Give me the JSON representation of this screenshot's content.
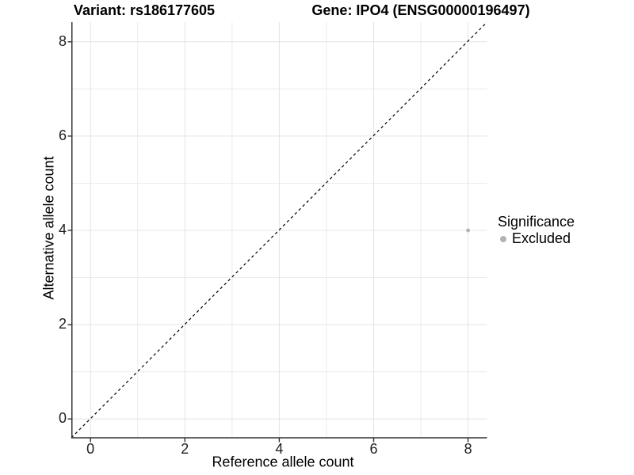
{
  "figure": {
    "title_left": "Variant: rs186177605",
    "title_right": "Gene: IPO4 (ENSG00000196497)"
  },
  "chart_data": {
    "type": "scatter",
    "title": "Variant: rs186177605 | Gene: IPO4 (ENSG00000196497)",
    "xlabel": "Reference allele count",
    "ylabel": "Alternative allele count",
    "x_ticks": [
      0,
      2,
      4,
      6,
      8
    ],
    "y_ticks": [
      0,
      2,
      4,
      6,
      8
    ],
    "xlim": [
      -0.4,
      8.4
    ],
    "ylim": [
      -0.4,
      8.4
    ],
    "grid": "major+minor",
    "series": [
      {
        "name": "Excluded",
        "color": "#b2b2b2",
        "points": [
          {
            "x": 8,
            "y": 4
          }
        ]
      }
    ],
    "reference_line": {
      "type": "identity y=x",
      "style": "dashed",
      "color": "#000000"
    },
    "legend": {
      "position": "right",
      "title": "Significance",
      "entries": [
        {
          "label": "Excluded",
          "color": "#b2b2b2",
          "marker": "circle"
        }
      ]
    }
  },
  "colors": {
    "background": "#ffffff",
    "grid_major": "#e4e4e4",
    "grid_minor": "#ececec",
    "axis_line": "#333333",
    "tick_mark": "#333333",
    "tick_text": "#1f1f1f",
    "point": "#b2b2b2",
    "dashed_line": "#000000"
  }
}
